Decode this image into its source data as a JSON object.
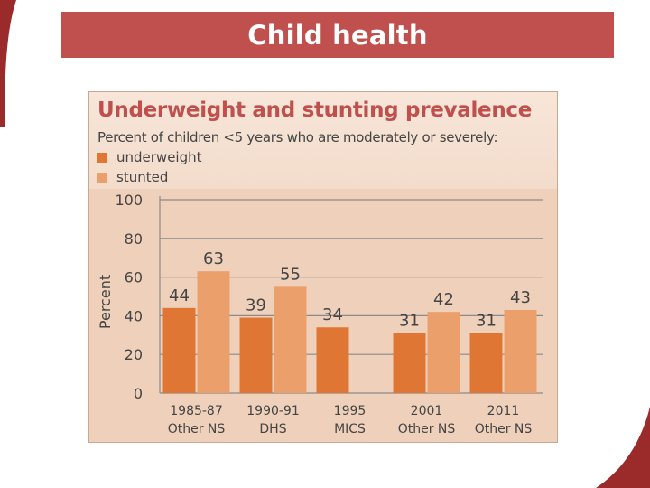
{
  "slide": {
    "title": "Child health",
    "banner_color": "#c0504d"
  },
  "chart_data": {
    "type": "bar",
    "title": "Underweight and stunting prevalence",
    "subtitle": "Percent of children <5 years who are moderately or severely:",
    "ylabel": "Percent",
    "xlabel": "",
    "ylim": [
      0,
      100
    ],
    "yticks": [
      0,
      20,
      40,
      60,
      80,
      100
    ],
    "grid": true,
    "legend_position": "top-left",
    "categories": [
      [
        "1985-87",
        "Other NS"
      ],
      [
        "1990-91",
        "DHS"
      ],
      [
        "1995",
        "MICS"
      ],
      [
        "2001",
        "Other NS"
      ],
      [
        "2011",
        "Other NS"
      ]
    ],
    "series": [
      {
        "name": "underweight",
        "color": "#e07634",
        "values": [
          44,
          39,
          34,
          31,
          31
        ]
      },
      {
        "name": "stunted",
        "color": "#eba06c",
        "values": [
          63,
          55,
          null,
          42,
          43
        ]
      }
    ]
  }
}
